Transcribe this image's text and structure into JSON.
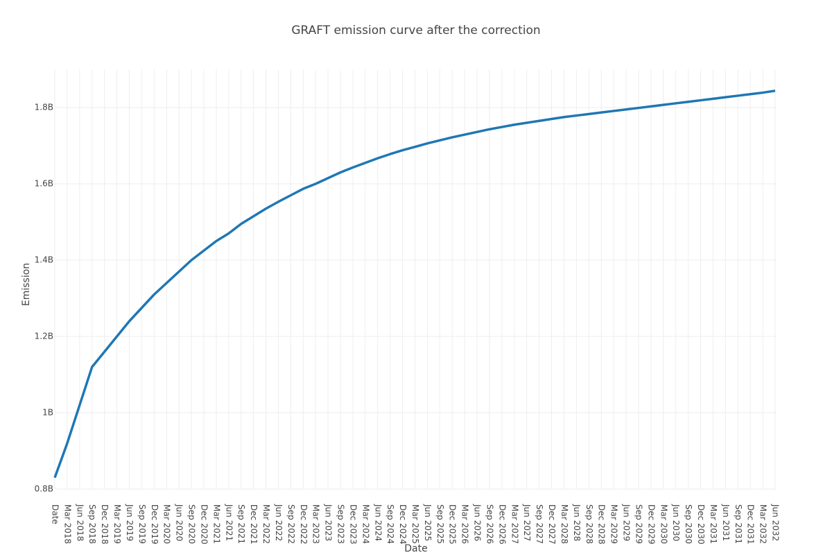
{
  "chart_data": {
    "type": "line",
    "title": "GRAFT emission curve after the correction",
    "x_label": "Date",
    "y_label": "Emission",
    "categories": [
      "Date",
      "Mar 2018",
      "Jun 2018",
      "Sep 2018",
      "Dec 2018",
      "Mar 2019",
      "Jun 2019",
      "Sep 2019",
      "Dec 2019",
      "Mar 2020",
      "Jun 2020",
      "Sep 2020",
      "Dec 2020",
      "Mar 2021",
      "Jun 2021",
      "Sep 2021",
      "Dec 2021",
      "Mar 2022",
      "Jun 2022",
      "Sep 2022",
      "Dec 2022",
      "Mar 2023",
      "Jun 2023",
      "Sep 2023",
      "Dec 2023",
      "Mar 2024",
      "Jun 2024",
      "Sep 2024",
      "Dec 2024",
      "Mar 2025",
      "Jun 2025",
      "Sep 2025",
      "Dec 2025",
      "Mar 2026",
      "Jun 2026",
      "Sep 2026",
      "Dec 2026",
      "Mar 2027",
      "Jun 2027",
      "Sep 2027",
      "Dec 2027",
      "Mar 2028",
      "Jun 2028",
      "Sep 2028",
      "Dec 2028",
      "Mar 2029",
      "Jun 2029",
      "Sep 2029",
      "Dec 2029",
      "Mar 2030",
      "Jun 2030",
      "Sep 2030",
      "Dec 2030",
      "Mar 2031",
      "Jun 2031",
      "Sep 2031",
      "Dec 2031",
      "Mar 2032",
      "Jun 2032"
    ],
    "values": [
      830000000,
      920000000,
      1020000000,
      1120000000,
      1160000000,
      1200000000,
      1240000000,
      1275000000,
      1310000000,
      1340000000,
      1370000000,
      1400000000,
      1425000000,
      1450000000,
      1470000000,
      1495000000,
      1515000000,
      1535000000,
      1553000000,
      1570000000,
      1587000000,
      1600000000,
      1615000000,
      1630000000,
      1643000000,
      1655000000,
      1667000000,
      1678000000,
      1688000000,
      1697000000,
      1706000000,
      1714000000,
      1722000000,
      1729000000,
      1736000000,
      1743000000,
      1749000000,
      1755000000,
      1760000000,
      1765000000,
      1770000000,
      1775000000,
      1779000000,
      1783000000,
      1787000000,
      1791000000,
      1795000000,
      1799000000,
      1803000000,
      1807000000,
      1811000000,
      1815000000,
      1819000000,
      1823000000,
      1827000000,
      1831000000,
      1835000000,
      1839000000,
      1844000000
    ],
    "color": "#1f77b4",
    "ylim": [
      800000000,
      1900000000
    ],
    "yticks": [
      {
        "value": 800000000,
        "label": "0.8B"
      },
      {
        "value": 1000000000,
        "label": "1B"
      },
      {
        "value": 1200000000,
        "label": "1.2B"
      },
      {
        "value": 1400000000,
        "label": "1.4B"
      },
      {
        "value": 1600000000,
        "label": "1.6B"
      },
      {
        "value": 1800000000,
        "label": "1.8B"
      }
    ],
    "grid": true
  }
}
